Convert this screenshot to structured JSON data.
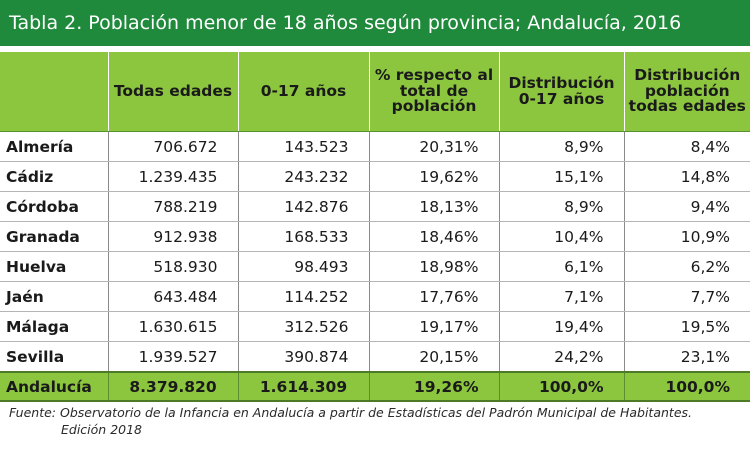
{
  "title": "Tabla 2. Población menor de 18 años según provincia; Andalucía, 2016",
  "header": [
    "",
    "Todas edades",
    "0-17 años",
    "% respecto al total de población",
    "Distribución 0-17 años",
    "Distribución población todas edades"
  ],
  "rows": [
    {
      "provincia": "Almería",
      "todas": "706.672",
      "menores": "143.523",
      "pct": "20,31%",
      "dist_menores": "8,9%",
      "dist_todas": "8,4%"
    },
    {
      "provincia": "Cádiz",
      "todas": "1.239.435",
      "menores": "243.232",
      "pct": "19,62%",
      "dist_menores": "15,1%",
      "dist_todas": "14,8%"
    },
    {
      "provincia": "Córdoba",
      "todas": "788.219",
      "menores": "142.876",
      "pct": "18,13%",
      "dist_menores": "8,9%",
      "dist_todas": "9,4%"
    },
    {
      "provincia": "Granada",
      "todas": "912.938",
      "menores": "168.533",
      "pct": "18,46%",
      "dist_menores": "10,4%",
      "dist_todas": "10,9%"
    },
    {
      "provincia": "Huelva",
      "todas": "518.930",
      "menores": "98.493",
      "pct": "18,98%",
      "dist_menores": "6,1%",
      "dist_todas": "6,2%"
    },
    {
      "provincia": "Jaén",
      "todas": "643.484",
      "menores": "114.252",
      "pct": "17,76%",
      "dist_menores": "7,1%",
      "dist_todas": "7,7%"
    },
    {
      "provincia": "Málaga",
      "todas": "1.630.615",
      "menores": "312.526",
      "pct": "19,17%",
      "dist_menores": "19,4%",
      "dist_todas": "19,5%"
    },
    {
      "provincia": "Sevilla",
      "todas": "1.939.527",
      "menores": "390.874",
      "pct": "20,15%",
      "dist_menores": "24,2%",
      "dist_todas": "23,1%"
    }
  ],
  "total": {
    "provincia": "Andalucía",
    "todas": "8.379.820",
    "menores": "1.614.309",
    "pct": "19,26%",
    "dist_menores": "100,0%",
    "dist_todas": "100,0%"
  },
  "footer": {
    "line1": "Fuente: Observatorio de la Infancia en Andalucía a partir de Estadísticas del Padrón Municipal de Habitantes.",
    "line2": "Edición 2018"
  },
  "colors": {
    "title_bg": "#1f8a3b",
    "header_bg": "#8cc63f"
  }
}
